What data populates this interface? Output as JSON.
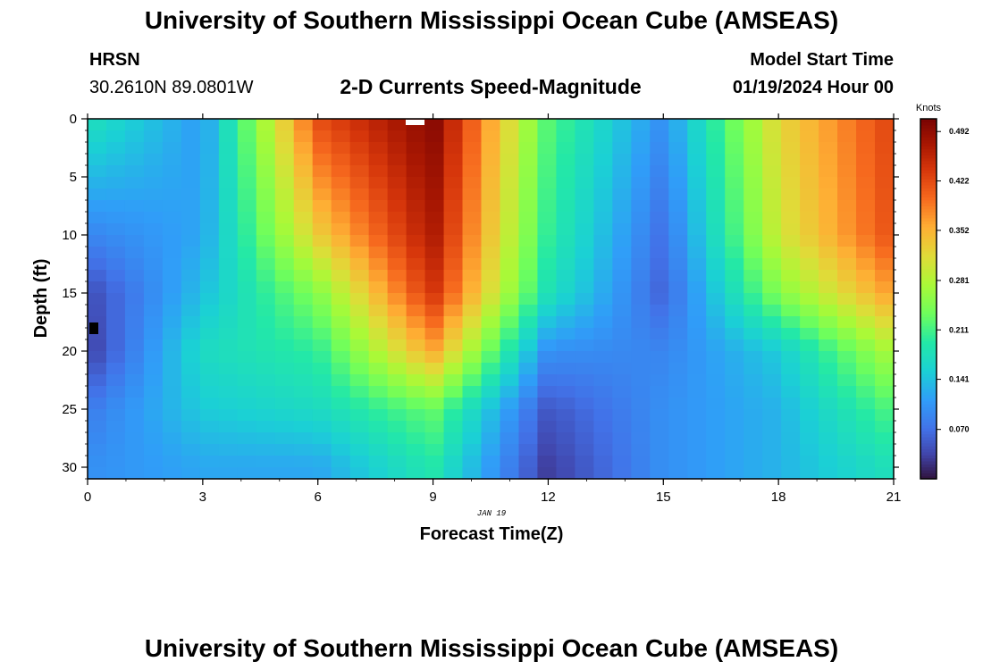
{
  "header": {
    "title_top": "University of Southern Mississippi Ocean Cube (AMSEAS)",
    "title_bottom": "University of Southern Mississippi Ocean Cube (AMSEAS)",
    "station": "HRSN",
    "coords": "30.2610N  89.0801W",
    "chart_title": "2-D Currents Speed-Magnitude",
    "model_start_label": "Model Start Time",
    "model_start_value": "01/19/2024 Hour 00"
  },
  "chart_data": {
    "type": "heatmap",
    "title": "2-D Currents Speed-Magnitude",
    "xlabel": "Forecast Time(Z)",
    "ylabel": "Depth (ft)",
    "xlim": [
      0,
      21
    ],
    "ylim": [
      31,
      0
    ],
    "x_ticks": [
      "0",
      "3",
      "6",
      "9",
      "12",
      "15",
      "18",
      "21"
    ],
    "y_ticks": [
      "0",
      "5",
      "10",
      "15",
      "20",
      "25",
      "30"
    ],
    "date_label": "JAN 19",
    "colorbar": {
      "title": "Knots",
      "min": 0.0,
      "max": 0.51,
      "labels": [
        "0.492",
        "0.422",
        "0.352",
        "0.281",
        "0.211",
        "0.141",
        "0.070"
      ],
      "label_values": [
        0.492,
        0.422,
        0.352,
        0.281,
        0.211,
        0.141,
        0.07
      ]
    },
    "times": [
      0,
      3,
      6,
      9,
      12,
      15,
      18,
      21
    ],
    "depth_profiles": [
      {
        "depth": 0,
        "speed": [
          0.18,
          0.11,
          0.42,
          0.5,
          0.22,
          0.1,
          0.32,
          0.43
        ]
      },
      {
        "depth": 10,
        "speed": [
          0.09,
          0.12,
          0.33,
          0.47,
          0.2,
          0.07,
          0.3,
          0.42
        ]
      },
      {
        "depth": 15,
        "speed": [
          0.04,
          0.14,
          0.25,
          0.44,
          0.18,
          0.06,
          0.25,
          0.37
        ]
      },
      {
        "depth": 20,
        "speed": [
          0.03,
          0.17,
          0.2,
          0.36,
          0.1,
          0.09,
          0.15,
          0.28
        ]
      },
      {
        "depth": 25,
        "speed": [
          0.08,
          0.15,
          0.17,
          0.23,
          0.05,
          0.1,
          0.13,
          0.22
        ]
      },
      {
        "depth": 30,
        "speed": [
          0.1,
          0.12,
          0.12,
          0.19,
          0.03,
          0.1,
          0.13,
          0.18
        ]
      }
    ]
  }
}
